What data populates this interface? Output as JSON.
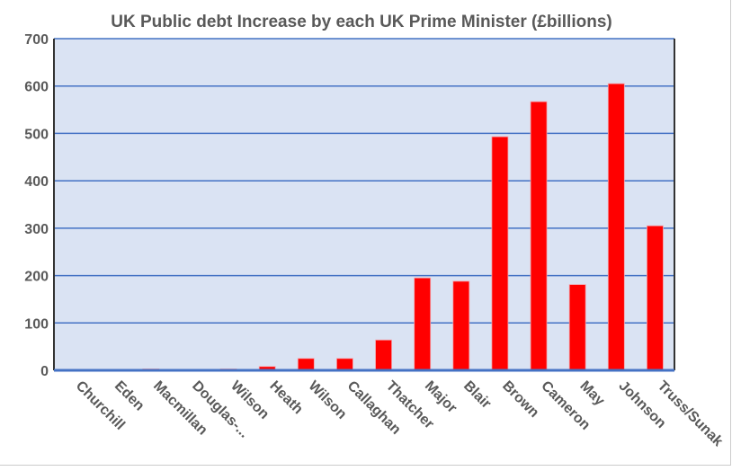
{
  "chart_data": {
    "type": "bar",
    "title": "UK Public debt Increase by each UK Prime Minister (£billions)",
    "xlabel": "",
    "ylabel": "",
    "ylim": [
      0,
      700
    ],
    "yticks": [
      0,
      100,
      200,
      300,
      400,
      500,
      600,
      700
    ],
    "grid": true,
    "legend": "none",
    "categories": [
      "Churchill",
      "Eden",
      "Macmillan",
      "Douglas-...",
      "Wilson",
      "Heath",
      "Wilson",
      "Callaghan",
      "Thatcher",
      "Major",
      "Blair",
      "Brown",
      "Cameron",
      "May",
      "Johnson",
      "Truss/Sunak"
    ],
    "values": [
      1,
      0,
      3,
      1,
      3,
      8,
      25,
      25,
      64,
      195,
      188,
      493,
      567,
      181,
      605,
      305
    ],
    "colors": {
      "bar": "#ff0000",
      "plot_bg": "#dae3f3",
      "grid": "#4472c4",
      "text": "#595959"
    }
  }
}
